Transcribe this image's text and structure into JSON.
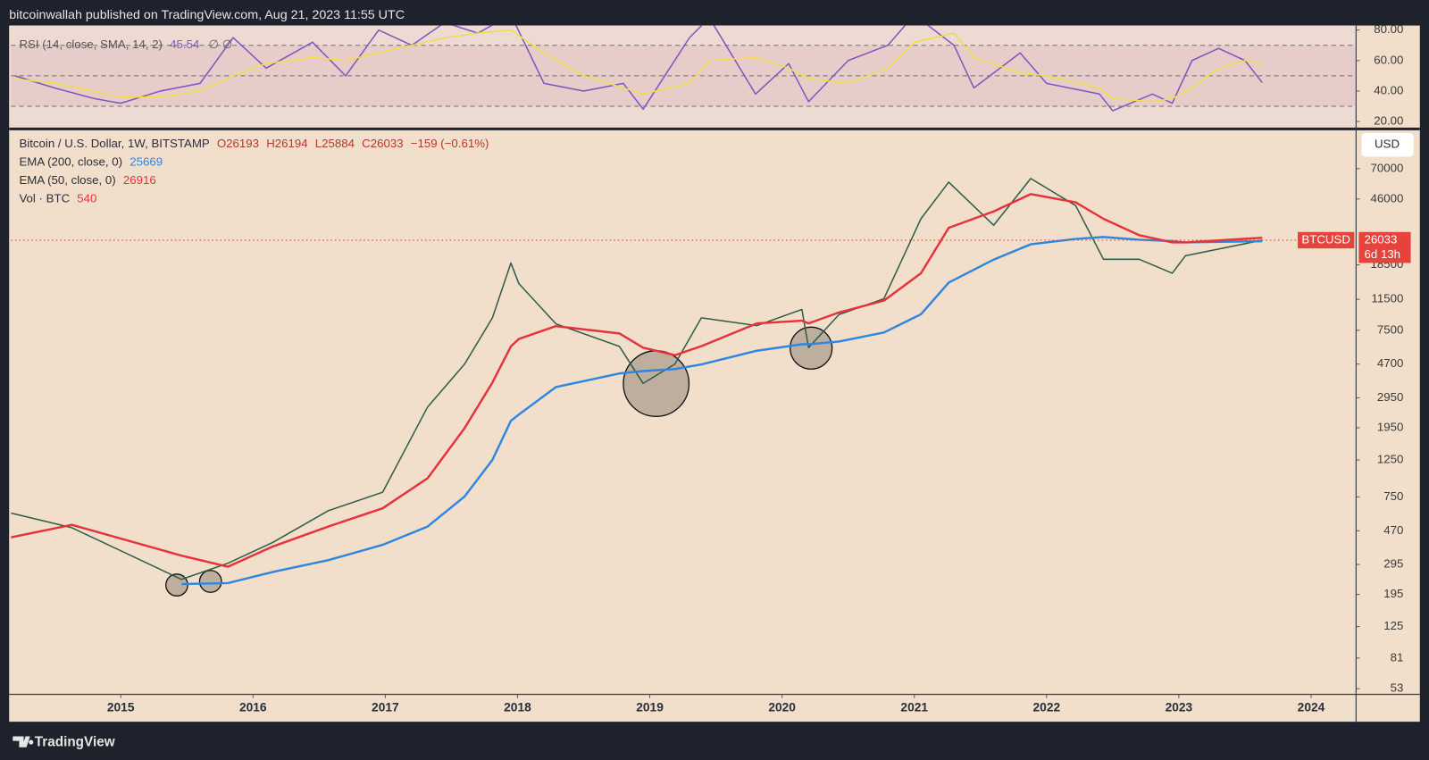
{
  "header": {
    "published": "bitcoinwallah published on TradingView.com, Aug 21, 2023 11:55 UTC"
  },
  "footer": {
    "brand": "TradingView"
  },
  "currency_button": "USD",
  "legend": {
    "open": "O26193",
    "high": "H26194",
    "low": "L25884",
    "close": "C26033",
    "change": "−159 (−0.61%)",
    "volume": "Vol · BTC",
    "volume_value": 540
  },
  "rsi_legend": {
    "value": 45.54,
    "extra": "∅ ∅"
  },
  "price_tag": {
    "symbol": "BTCUSD",
    "value": 26033,
    "countdown": "6d 13h"
  },
  "chart_data": [
    {
      "type": "line",
      "x": [
        2014.2,
        2014.5,
        2014.8,
        2015.0,
        2015.3,
        2015.6,
        2015.85,
        2016.1,
        2016.45,
        2016.7,
        2016.95,
        2017.2,
        2017.45,
        2017.7,
        2017.95,
        2018.2,
        2018.5,
        2018.8,
        2018.95,
        2019.3,
        2019.45,
        2019.8,
        2020.05,
        2020.2,
        2020.5,
        2020.8,
        2021.0,
        2021.3,
        2021.45,
        2021.8,
        2022.0,
        2022.4,
        2022.5,
        2022.8,
        2022.95,
        2023.1,
        2023.3,
        2023.5,
        2023.63
      ],
      "series": [
        {
          "name": "RSI (14, close, SMA, 14, 2)",
          "color": "#7e57c2",
          "values": [
            50,
            42,
            35,
            32,
            40,
            45,
            75,
            55,
            72,
            50,
            80,
            70,
            85,
            78,
            90,
            45,
            40,
            45,
            28,
            75,
            88,
            38,
            58,
            33,
            60,
            70,
            90,
            70,
            42,
            65,
            45,
            38,
            27,
            38,
            32,
            60,
            68,
            60,
            45.54
          ]
        },
        {
          "color": "#f2dc4a",
          "values": [
            48,
            45,
            40,
            36,
            36,
            40,
            50,
            58,
            62,
            60,
            65,
            70,
            75,
            78,
            80,
            65,
            50,
            42,
            38,
            45,
            60,
            62,
            55,
            48,
            45,
            55,
            72,
            78,
            62,
            52,
            50,
            42,
            35,
            33,
            35,
            42,
            55,
            60,
            58
          ]
        }
      ],
      "xlim": [
        2014.17,
        2024.34
      ],
      "ylim": [
        16,
        83
      ],
      "yticks": [
        {
          "value": 20,
          "label": "20.00"
        },
        {
          "value": 40,
          "label": "40.00"
        },
        {
          "value": 60,
          "label": "60.00"
        },
        {
          "value": 80,
          "label": "80.00"
        }
      ],
      "band_lines": [
        70,
        50,
        30
      ]
    },
    {
      "type": "line",
      "log_scale": true,
      "x": [
        2014.17,
        2014.63,
        2015.46,
        2015.81,
        2016.15,
        2016.57,
        2016.98,
        2017.32,
        2017.6,
        2017.81,
        2017.95,
        2018.01,
        2018.29,
        2018.77,
        2018.95,
        2019.19,
        2019.39,
        2019.81,
        2020.15,
        2020.2,
        2020.43,
        2020.77,
        2021.05,
        2021.26,
        2021.6,
        2021.88,
        2022.22,
        2022.43,
        2022.7,
        2022.95,
        2023.05,
        2023.63
      ],
      "series": [
        {
          "name": "Bitcoin / U.S. Dollar, 1W, BITSTAMP",
          "color": "#2f5d4c",
          "values": [
            600,
            490,
            240,
            300,
            400,
            620,
            800,
            2600,
            4700,
            8900,
            19000,
            14300,
            8200,
            6000,
            3600,
            4700,
            8900,
            8000,
            10000,
            5900,
            9300,
            11600,
            35000,
            58000,
            32000,
            61000,
            42000,
            20000,
            20000,
            16500,
            21000,
            26033
          ]
        },
        {
          "name": "EMA (200, close, 0)",
          "legend_value": 25669,
          "color": "#2f86e0",
          "values": [
            null,
            null,
            225,
            228,
            266,
            313,
            387,
            498,
            755,
            1250,
            2150,
            2340,
            3420,
            4130,
            4270,
            4390,
            4680,
            5650,
            6180,
            6180,
            6420,
            7270,
            9350,
            14500,
            19900,
            24600,
            26500,
            27200,
            26200,
            25700,
            25250,
            25669
          ]
        },
        {
          "name": "EMA (50, close, 0)",
          "legend_value": 26916,
          "color": "#e5323c",
          "values": [
            429,
            510,
            333,
            286,
            378,
            498,
            641,
            971,
            1940,
            3640,
            6000,
            6650,
            7940,
            7180,
            5900,
            5310,
            6020,
            8240,
            8560,
            8240,
            9590,
            11290,
            16480,
            30900,
            38730,
            49200,
            43950,
            35000,
            27900,
            25250,
            25250,
            26916
          ]
        }
      ],
      "xlim": [
        2014.17,
        2024.34
      ],
      "ylim": [
        49,
        118800
      ],
      "yticks": [
        53,
        81,
        125,
        195,
        295,
        470,
        750,
        1250,
        1950,
        2950,
        4700,
        7500,
        11500,
        18500,
        46000,
        70000
      ],
      "xticks": [
        2015,
        2016,
        2017,
        2018,
        2019,
        2020,
        2021,
        2022,
        2023,
        2024
      ]
    }
  ]
}
